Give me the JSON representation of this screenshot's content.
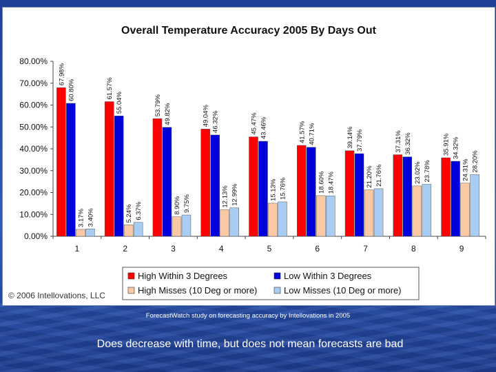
{
  "chart_data": {
    "type": "bar",
    "title": "Overall Temperature Accuracy 2005 By Days Out",
    "xlabel": "",
    "ylabel": "",
    "categories": [
      "1",
      "2",
      "3",
      "4",
      "5",
      "6",
      "7",
      "8",
      "9"
    ],
    "ylim": [
      0,
      80
    ],
    "yticks": [
      "0.00%",
      "10.00%",
      "20.00%",
      "30.00%",
      "40.00%",
      "50.00%",
      "60.00%",
      "70.00%",
      "80.00%"
    ],
    "grid": false,
    "legend_position": "bottom",
    "series": [
      {
        "name": "High Within 3 Degrees",
        "color": "#ff0000",
        "values": [
          67.98,
          61.57,
          53.79,
          49.04,
          45.47,
          41.57,
          39.14,
          37.31,
          35.91
        ],
        "labels": [
          "67.98%",
          "61.57%",
          "53.79%",
          "49.04%",
          "45.47%",
          "41.57%",
          "39.14%",
          "37.31%",
          "35.91%"
        ]
      },
      {
        "name": "Low Within 3 Degrees",
        "color": "#0000dd",
        "values": [
          60.8,
          55.04,
          49.82,
          46.32,
          43.46,
          40.71,
          37.79,
          36.32,
          34.32
        ],
        "labels": [
          "60.80%",
          "55.04%",
          "49.82%",
          "46.32%",
          "43.46%",
          "40.71%",
          "37.79%",
          "36.32%",
          "34.32%"
        ]
      },
      {
        "name": "High Misses (10 Deg or more)",
        "color": "#f9c9a6",
        "values": [
          3.17,
          5.24,
          8.9,
          12.13,
          15.13,
          18.6,
          21.2,
          23.02,
          24.31
        ],
        "labels": [
          "3.17%",
          "5.24%",
          "8.90%",
          "12.13%",
          "15.13%",
          "18.60%",
          "21.20%",
          "23.02%",
          "24.31%"
        ]
      },
      {
        "name": "Low Misses (10 Deg or more)",
        "color": "#a9cdf2",
        "values": [
          3.4,
          6.37,
          9.75,
          12.99,
          15.76,
          18.47,
          21.76,
          23.78,
          28.2
        ],
        "labels": [
          "3.40%",
          "6.37%",
          "9.75%",
          "12.99%",
          "15.76%",
          "18.47%",
          "21.76%",
          "23.78%",
          "28.20%"
        ]
      }
    ]
  },
  "copyright": "© 2006 Intellovations, LLC",
  "caption": "ForecastWatch study on forecasting accuracy by Intellovations in 2005",
  "tagline": "Does decrease with time, but does not mean forecasts are bad"
}
